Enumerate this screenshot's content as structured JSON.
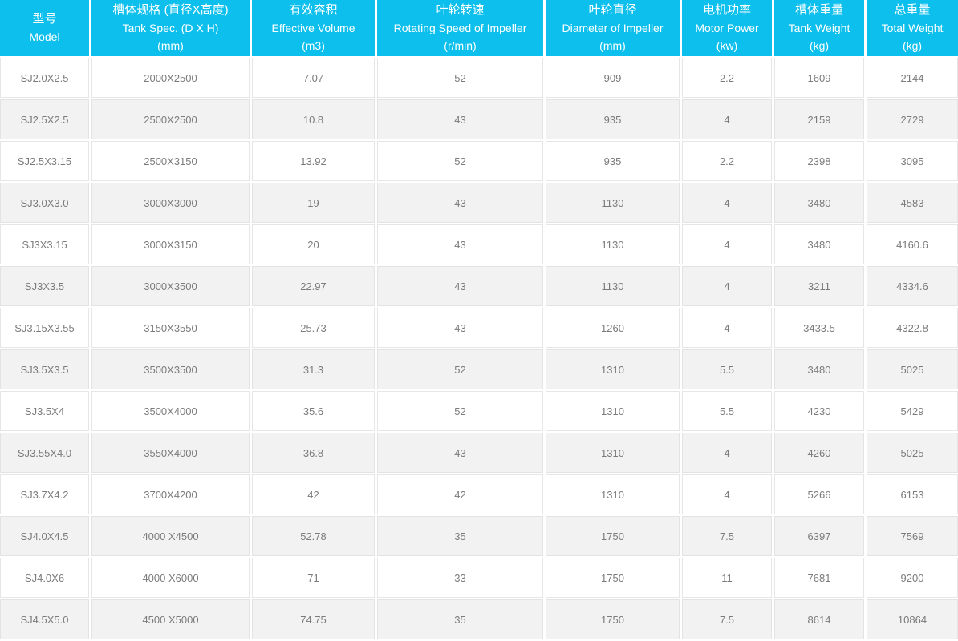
{
  "colors": {
    "header_bg": "#0dbfec",
    "header_text": "#ffffff",
    "body_text": "#7b7b7b",
    "row_alt_bg": "#f2f2f2",
    "cell_border": "#e6e6e6"
  },
  "table": {
    "columns": [
      {
        "zh": "型号",
        "en": "Model",
        "unit": ""
      },
      {
        "zh": "槽体规格 (直径X高度)",
        "en": "Tank Spec. (D X H)",
        "unit": "(mm)"
      },
      {
        "zh": "有效容积",
        "en": "Effective Volume",
        "unit": "(m3)"
      },
      {
        "zh": "叶轮转速",
        "en": "Rotating Speed of Impeller",
        "unit": "(r/min)"
      },
      {
        "zh": "叶轮直径",
        "en": "Diameter of Impeller",
        "unit": "(mm)"
      },
      {
        "zh": "电机功率",
        "en": "Motor Power",
        "unit": "(kw)"
      },
      {
        "zh": "槽体重量",
        "en": "Tank Weight",
        "unit": "(kg)"
      },
      {
        "zh": "总重量",
        "en": "Total Weight",
        "unit": "(kg)"
      }
    ],
    "rows": [
      [
        "SJ2.0X2.5",
        "2000X2500",
        "7.07",
        "52",
        "909",
        "2.2",
        "1609",
        "2144"
      ],
      [
        "SJ2.5X2.5",
        "2500X2500",
        "10.8",
        "43",
        "935",
        "4",
        "2159",
        "2729"
      ],
      [
        "SJ2.5X3.15",
        "2500X3150",
        "13.92",
        "52",
        "935",
        "2.2",
        "2398",
        "3095"
      ],
      [
        "SJ3.0X3.0",
        "3000X3000",
        "19",
        "43",
        "1130",
        "4",
        "3480",
        "4583"
      ],
      [
        "SJ3X3.15",
        "3000X3150",
        "20",
        "43",
        "1130",
        "4",
        "3480",
        "4160.6"
      ],
      [
        "SJ3X3.5",
        "3000X3500",
        "22.97",
        "43",
        "1130",
        "4",
        "3211",
        "4334.6"
      ],
      [
        "SJ3.15X3.55",
        "3150X3550",
        "25.73",
        "43",
        "1260",
        "4",
        "3433.5",
        "4322.8"
      ],
      [
        "SJ3.5X3.5",
        "3500X3500",
        "31.3",
        "52",
        "1310",
        "5.5",
        "3480",
        "5025"
      ],
      [
        "SJ3.5X4",
        "3500X4000",
        "35.6",
        "52",
        "1310",
        "5.5",
        "4230",
        "5429"
      ],
      [
        "SJ3.55X4.0",
        "3550X4000",
        "36.8",
        "43",
        "1310",
        "4",
        "4260",
        "5025"
      ],
      [
        "SJ3.7X4.2",
        "3700X4200",
        "42",
        "42",
        "1310",
        "4",
        "5266",
        "6153"
      ],
      [
        "SJ4.0X4.5",
        "4000 X4500",
        "52.78",
        "35",
        "1750",
        "7.5",
        "6397",
        "7569"
      ],
      [
        "SJ4.0X6",
        "4000 X6000",
        "71",
        "33",
        "1750",
        "11",
        "7681",
        "9200"
      ],
      [
        "SJ4.5X5.0",
        "4500 X5000",
        "74.75",
        "35",
        "1750",
        "7.5",
        "8614",
        "10864"
      ]
    ]
  }
}
